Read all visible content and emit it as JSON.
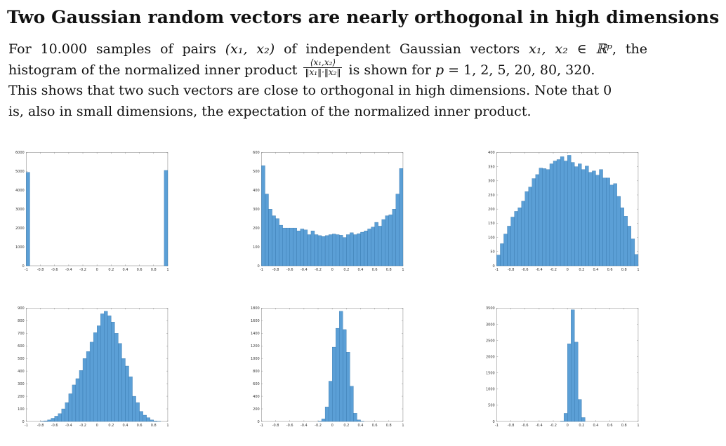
{
  "title": "Two Gaussian random vectors are nearly orthogonal in high dimensions",
  "paragraph": {
    "line1": {
      "pre": "For 10.000 samples of pairs",
      "pair": "(x₁, x₂)",
      "mid": "of independent Gaussian vectors",
      "vecs": "x₁, x₂ ∈ ℝᵖ",
      "post": ", the"
    },
    "line2": {
      "pre": "histogram of the normalized inner product",
      "frac_num": "⟨x₁,x₂⟩",
      "frac_den": "‖x₁‖·‖x₂‖",
      "mid": "is shown for",
      "pvar": "p",
      "post": "= 1, 2, 5, 20, 80, 320."
    },
    "line3": "This shows that two such vectors are close to orthogonal in high dimensions. Note that 0",
    "line4": "is, also in small dimensions, the expectation of the normalized inner product."
  },
  "colors": {
    "bar_fill": "#5b9fd6",
    "bar_stroke": "#2a6ca3",
    "axis": "#888888"
  },
  "chart_data": [
    {
      "type": "bar",
      "p": 1,
      "x_range": [
        -1,
        1
      ],
      "bins": 40,
      "xticks": [
        "-1",
        "-0.8",
        "-0.6",
        "-0.4",
        "-0.2",
        "0",
        "0.2",
        "0.4",
        "0.6",
        "0.8",
        "1"
      ],
      "ylim": [
        0,
        6000
      ],
      "yticks": [
        "0",
        "1000",
        "2000",
        "3000",
        "4000",
        "5000",
        "6000"
      ],
      "values": [
        4950,
        0,
        0,
        0,
        0,
        0,
        0,
        0,
        0,
        0,
        0,
        0,
        0,
        0,
        0,
        0,
        0,
        0,
        0,
        0,
        0,
        0,
        0,
        0,
        0,
        0,
        0,
        0,
        0,
        0,
        0,
        0,
        0,
        0,
        0,
        0,
        0,
        0,
        0,
        5050
      ]
    },
    {
      "type": "bar",
      "p": 2,
      "x_range": [
        -1,
        1
      ],
      "bins": 40,
      "xticks": [
        "-1",
        "-0.8",
        "-0.6",
        "-0.4",
        "-0.2",
        "0",
        "0.2",
        "0.4",
        "0.6",
        "0.8",
        "1"
      ],
      "ylim": [
        0,
        600
      ],
      "yticks": [
        "0",
        "100",
        "200",
        "300",
        "400",
        "500",
        "600"
      ],
      "values": [
        530,
        380,
        300,
        265,
        250,
        215,
        200,
        200,
        200,
        200,
        185,
        195,
        190,
        165,
        185,
        165,
        160,
        155,
        160,
        165,
        168,
        165,
        162,
        150,
        165,
        175,
        165,
        170,
        178,
        185,
        195,
        205,
        230,
        210,
        245,
        265,
        270,
        300,
        380,
        515
      ]
    },
    {
      "type": "bar",
      "p": 5,
      "x_range": [
        -1,
        1
      ],
      "bins": 40,
      "xticks": [
        "-1",
        "-0.8",
        "-0.6",
        "-0.4",
        "-0.2",
        "0",
        "0.2",
        "0.4",
        "0.6",
        "0.8",
        "1"
      ],
      "ylim": [
        0,
        400
      ],
      "yticks": [
        "0",
        "50",
        "100",
        "150",
        "200",
        "250",
        "300",
        "350",
        "400"
      ],
      "values": [
        38,
        78,
        112,
        140,
        172,
        192,
        205,
        228,
        262,
        278,
        308,
        322,
        345,
        343,
        340,
        360,
        370,
        375,
        385,
        370,
        390,
        365,
        350,
        360,
        340,
        352,
        330,
        335,
        320,
        340,
        310,
        310,
        285,
        290,
        245,
        205,
        175,
        140,
        95,
        40
      ]
    },
    {
      "type": "bar",
      "p": 20,
      "x_range": [
        -1,
        1
      ],
      "bins": 40,
      "xticks": [
        "-1",
        "-0.8",
        "-0.6",
        "-0.4",
        "-0.2",
        "0",
        "0.2",
        "0.4",
        "0.6",
        "0.8",
        "1"
      ],
      "ylim": [
        0,
        900
      ],
      "yticks": [
        "0",
        "100",
        "200",
        "300",
        "400",
        "500",
        "600",
        "700",
        "800",
        "900"
      ],
      "values": [
        0,
        0,
        0,
        0,
        2,
        5,
        12,
        25,
        42,
        62,
        100,
        150,
        220,
        290,
        340,
        405,
        500,
        555,
        630,
        705,
        760,
        855,
        875,
        840,
        790,
        700,
        620,
        500,
        440,
        355,
        200,
        150,
        80,
        50,
        30,
        12,
        4,
        1,
        0,
        0
      ]
    },
    {
      "type": "bar",
      "p": 80,
      "x_range": [
        -1,
        1
      ],
      "bins": 40,
      "xticks": [
        "-1",
        "-0.8",
        "-0.6",
        "-0.4",
        "-0.2",
        "0",
        "0.2",
        "0.4",
        "0.6",
        "0.8",
        "1"
      ],
      "ylim": [
        0,
        1800
      ],
      "yticks": [
        "0",
        "200",
        "400",
        "600",
        "800",
        "1000",
        "1200",
        "1400",
        "1600",
        "1800"
      ],
      "values": [
        0,
        0,
        0,
        0,
        0,
        0,
        0,
        0,
        0,
        0,
        0,
        0,
        0,
        0,
        0,
        0,
        5,
        40,
        230,
        640,
        1180,
        1480,
        1750,
        1460,
        1100,
        560,
        130,
        25,
        3,
        0,
        0,
        0,
        0,
        0,
        0,
        0,
        0,
        0,
        0,
        0
      ]
    },
    {
      "type": "bar",
      "p": 320,
      "x_range": [
        -1,
        1
      ],
      "bins": 40,
      "xticks": [
        "-1",
        "-0.8",
        "-0.6",
        "-0.4",
        "-0.2",
        "0",
        "0.2",
        "0.4",
        "0.6",
        "0.8",
        "1"
      ],
      "ylim": [
        0,
        3500
      ],
      "yticks": [
        "0",
        "500",
        "1000",
        "1500",
        "2000",
        "2500",
        "3000",
        "3500"
      ],
      "values": [
        0,
        0,
        0,
        0,
        0,
        0,
        0,
        0,
        0,
        0,
        0,
        0,
        0,
        0,
        0,
        0,
        0,
        0,
        10,
        250,
        2400,
        3450,
        2450,
        680,
        120,
        0,
        0,
        0,
        0,
        0,
        0,
        0,
        0,
        0,
        0,
        0,
        0,
        0,
        0,
        0
      ]
    }
  ]
}
